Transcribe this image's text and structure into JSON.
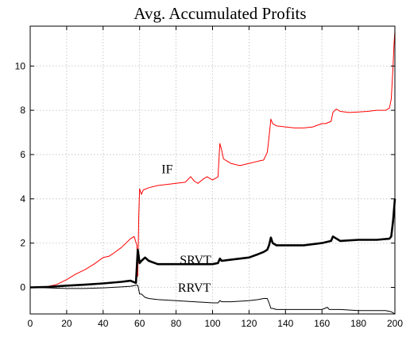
{
  "chart_data": {
    "type": "line",
    "title": "Avg. Accumulated Profits",
    "xlabel": "",
    "ylabel": "",
    "xlim": [
      0,
      200
    ],
    "ylim": [
      -1.2,
      11.8
    ],
    "grid": true,
    "x_ticks": [
      0,
      20,
      40,
      60,
      80,
      100,
      120,
      140,
      160,
      180,
      200
    ],
    "y_ticks": [
      0,
      2,
      4,
      6,
      8,
      10
    ],
    "series": [
      {
        "name": "IF",
        "color": "#ff0000",
        "x": [
          0,
          5,
          10,
          13,
          15,
          20,
          25,
          30,
          35,
          40,
          43,
          45,
          50,
          55,
          57,
          58.5,
          59,
          59.5,
          60,
          61,
          62,
          65,
          70,
          75,
          80,
          85,
          88,
          90,
          92,
          95,
          97,
          100,
          103,
          104,
          105,
          106,
          108,
          110,
          115,
          120,
          125,
          128,
          130,
          131,
          132,
          133,
          135,
          140,
          145,
          150,
          155,
          160,
          162,
          165,
          166,
          167,
          168,
          170,
          175,
          180,
          185,
          190,
          195,
          197,
          198,
          199,
          199.5,
          200
        ],
        "y": [
          0,
          0,
          0.05,
          0.1,
          0.15,
          0.35,
          0.6,
          0.8,
          1.05,
          1.35,
          1.4,
          1.5,
          1.8,
          2.2,
          2.3,
          1.9,
          0.5,
          3.2,
          4.45,
          4.2,
          4.4,
          4.5,
          4.6,
          4.65,
          4.7,
          4.75,
          5.0,
          4.8,
          4.7,
          4.9,
          5.0,
          4.85,
          5.0,
          6.5,
          6.2,
          5.8,
          5.7,
          5.6,
          5.5,
          5.6,
          5.7,
          5.75,
          6.1,
          6.8,
          7.6,
          7.4,
          7.3,
          7.25,
          7.2,
          7.2,
          7.25,
          7.4,
          7.4,
          7.5,
          7.9,
          8.0,
          8.05,
          7.95,
          7.9,
          7.92,
          7.95,
          8.0,
          8.0,
          8.1,
          8.5,
          10.0,
          11.0,
          11.6
        ]
      },
      {
        "name": "SRVT",
        "color": "#000000",
        "x": [
          0,
          10,
          15,
          20,
          30,
          40,
          50,
          55,
          58,
          59,
          60,
          61,
          63,
          65,
          70,
          80,
          90,
          100,
          103,
          104,
          105,
          110,
          120,
          125,
          128,
          130,
          131,
          132,
          133,
          135,
          140,
          150,
          160,
          165,
          166,
          167,
          170,
          180,
          190,
          197,
          198,
          199,
          200
        ],
        "y": [
          0,
          0.02,
          0.05,
          0.08,
          0.12,
          0.18,
          0.25,
          0.3,
          0.2,
          1.7,
          1.1,
          1.2,
          1.35,
          1.2,
          1.05,
          1.05,
          1.05,
          1.05,
          1.1,
          1.3,
          1.2,
          1.25,
          1.35,
          1.5,
          1.6,
          1.7,
          1.9,
          2.25,
          2.0,
          1.9,
          1.9,
          1.9,
          2.0,
          2.1,
          2.3,
          2.25,
          2.1,
          2.15,
          2.15,
          2.2,
          2.3,
          3.0,
          4.0
        ]
      },
      {
        "name": "RRVT",
        "color": "#000000",
        "x": [
          0,
          10,
          20,
          30,
          40,
          50,
          55,
          58,
          59,
          60,
          61,
          63,
          65,
          70,
          80,
          90,
          100,
          103,
          104,
          105,
          110,
          120,
          125,
          128,
          130,
          131,
          132,
          133,
          135,
          140,
          150,
          160,
          163,
          164,
          170,
          180,
          190,
          195,
          198,
          200
        ],
        "y": [
          0,
          -0.02,
          -0.05,
          -0.05,
          -0.02,
          0.02,
          0.05,
          0.1,
          0.1,
          -0.3,
          -0.3,
          -0.45,
          -0.5,
          -0.55,
          -0.6,
          -0.65,
          -0.7,
          -0.7,
          -0.6,
          -0.65,
          -0.65,
          -0.6,
          -0.55,
          -0.5,
          -0.5,
          -0.7,
          -0.95,
          -0.95,
          -1.0,
          -1.0,
          -1.0,
          -1.0,
          -0.9,
          -1.0,
          -1.0,
          -1.05,
          -1.05,
          -1.05,
          -1.1,
          -1.2
        ]
      }
    ],
    "annotations": [
      {
        "text": "IF",
        "x": 72,
        "y": 5.15,
        "series": "IF"
      },
      {
        "text": "SRVT",
        "x": 82,
        "y": 1.05,
        "series": "SRVT"
      },
      {
        "text": "RRVT",
        "x": 81,
        "y": -0.2,
        "series": "RRVT"
      }
    ]
  }
}
